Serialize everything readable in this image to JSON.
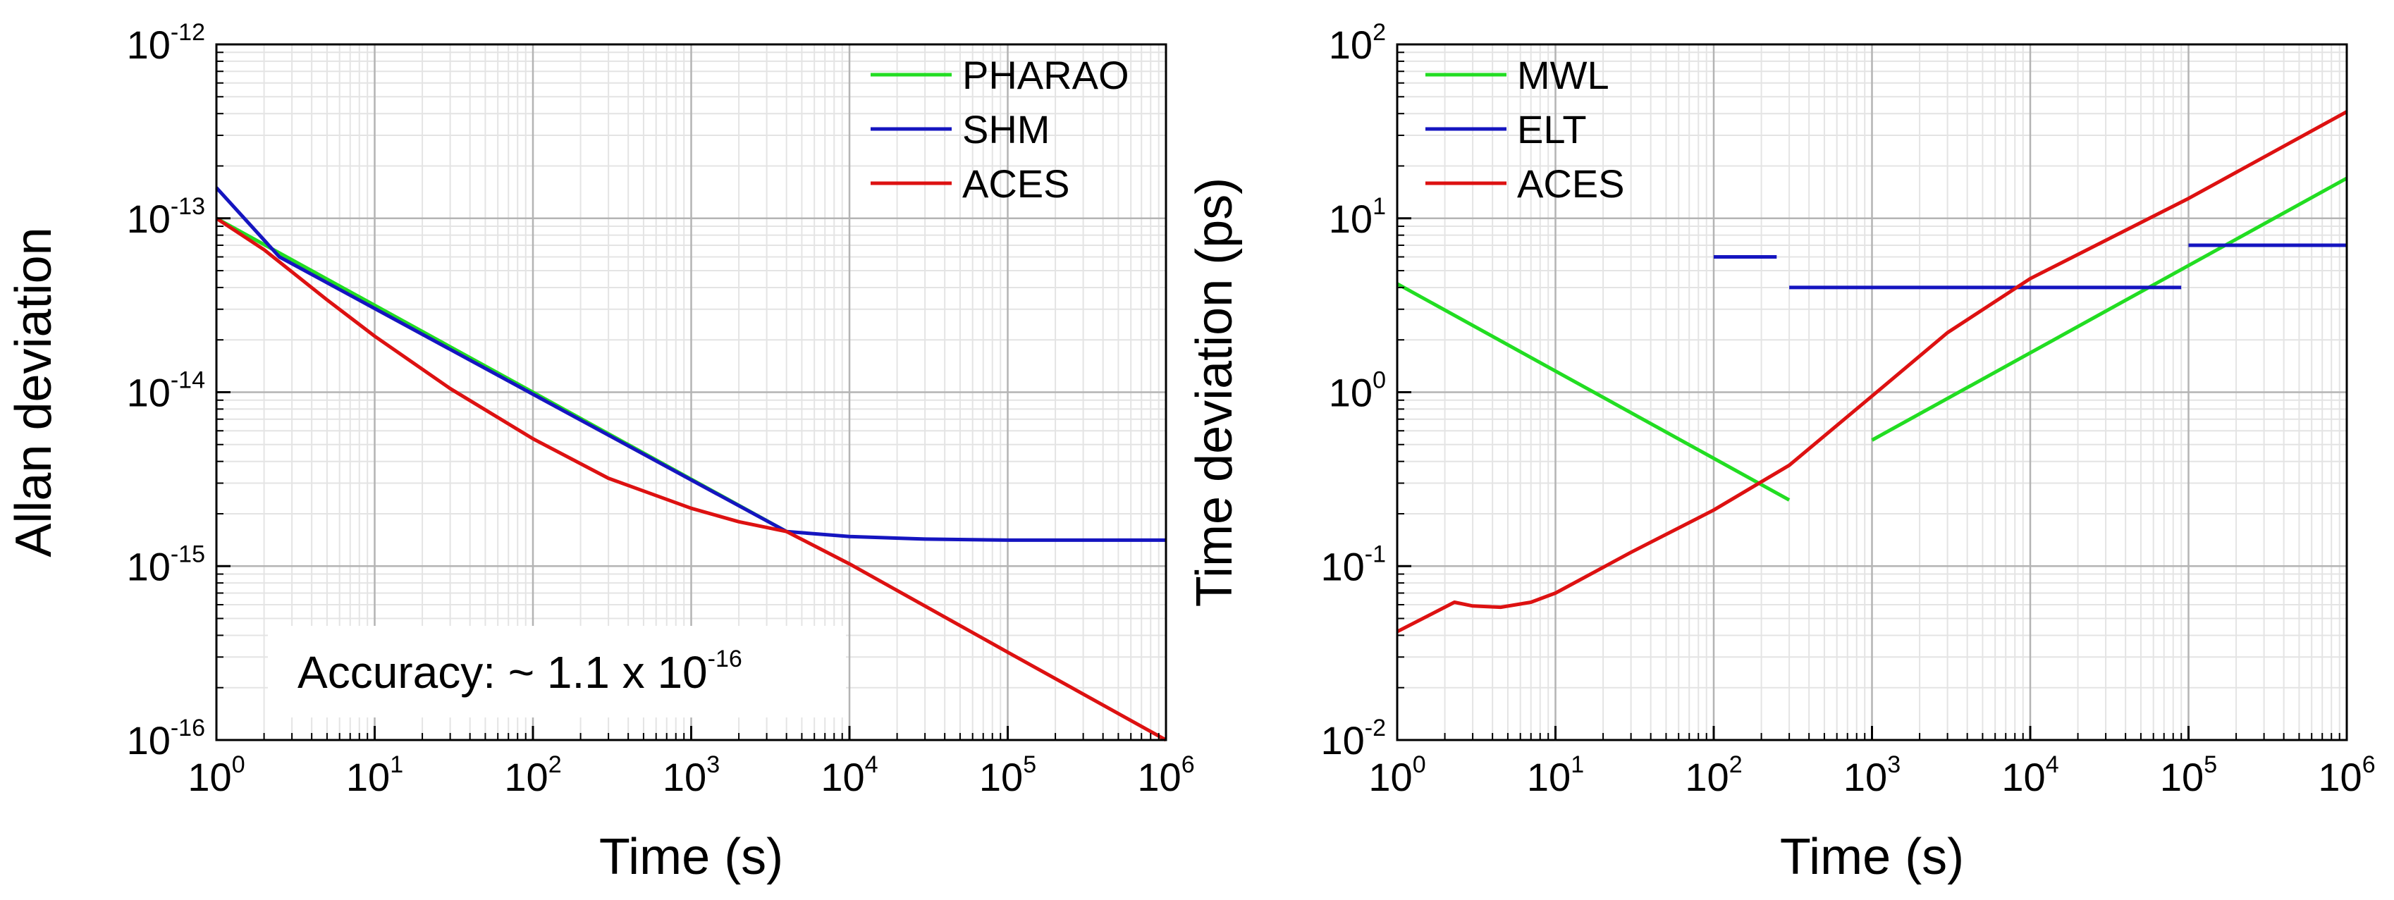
{
  "chart_data": [
    {
      "type": "line",
      "scale": "log-log",
      "xlabel": "Time (s)",
      "ylabel": "Allan deviation",
      "xlim": [
        1,
        1000000
      ],
      "ylim": [
        1e-16,
        1e-12
      ],
      "grid": true,
      "legend_position": "top-right",
      "x_ticks": [
        {
          "base": "10",
          "exp": "0"
        },
        {
          "base": "10",
          "exp": "1"
        },
        {
          "base": "10",
          "exp": "2"
        },
        {
          "base": "10",
          "exp": "3"
        },
        {
          "base": "10",
          "exp": "4"
        },
        {
          "base": "10",
          "exp": "5"
        },
        {
          "base": "10",
          "exp": "6"
        }
      ],
      "y_ticks": [
        {
          "base": "10",
          "exp": "-16"
        },
        {
          "base": "10",
          "exp": "-15"
        },
        {
          "base": "10",
          "exp": "-14"
        },
        {
          "base": "10",
          "exp": "-13"
        },
        {
          "base": "10",
          "exp": "-12"
        }
      ],
      "series": [
        {
          "name": "PHARAO",
          "color": "#22dd22",
          "points": [
            [
              1,
              1e-13
            ],
            [
              4000,
              1.58e-15
            ]
          ]
        },
        {
          "name": "SHM",
          "color": "#1515c0",
          "points": [
            [
              1,
              1.5e-13
            ],
            [
              2.5,
              6e-14
            ],
            [
              4000,
              1.58e-15
            ],
            [
              10000,
              1.48e-15
            ],
            [
              30000,
              1.43e-15
            ],
            [
              100000,
              1.41e-15
            ],
            [
              1000000,
              1.41e-15
            ]
          ]
        },
        {
          "name": "ACES",
          "color": "#dd1111",
          "points": [
            [
              1,
              1e-13
            ],
            [
              2,
              6.6e-14
            ],
            [
              5,
              3.4e-14
            ],
            [
              10,
              2.1e-14
            ],
            [
              30,
              1.05e-14
            ],
            [
              100,
              5.4e-15
            ],
            [
              300,
              3.2e-15
            ],
            [
              1000,
              2.15e-15
            ],
            [
              2000,
              1.8e-15
            ],
            [
              4000,
              1.58e-15
            ],
            [
              10000,
              1.03e-15
            ],
            [
              100000,
              3.2e-16
            ],
            [
              1000000,
              1e-16
            ]
          ]
        }
      ],
      "annotation": {
        "prefix": "Accuracy: ~ 1.1 x 10",
        "exponent": "-16"
      }
    },
    {
      "type": "line",
      "scale": "log-log",
      "xlabel": "Time (s)",
      "ylabel": "Time deviation (ps)",
      "xlim": [
        1,
        1000000
      ],
      "ylim": [
        0.01,
        100
      ],
      "grid": true,
      "legend_position": "top-left",
      "x_ticks": [
        {
          "base": "10",
          "exp": "0"
        },
        {
          "base": "10",
          "exp": "1"
        },
        {
          "base": "10",
          "exp": "2"
        },
        {
          "base": "10",
          "exp": "3"
        },
        {
          "base": "10",
          "exp": "4"
        },
        {
          "base": "10",
          "exp": "5"
        },
        {
          "base": "10",
          "exp": "6"
        }
      ],
      "y_ticks": [
        {
          "base": "10",
          "exp": "-2"
        },
        {
          "base": "10",
          "exp": "-1"
        },
        {
          "base": "10",
          "exp": "0"
        },
        {
          "base": "10",
          "exp": "1"
        },
        {
          "base": "10",
          "exp": "2"
        }
      ],
      "series": [
        {
          "name": "MWL",
          "color": "#22dd22",
          "segments": [
            [
              [
                1,
                4.2
              ],
              [
                300,
                0.24
              ]
            ],
            [
              [
                1000,
                0.53
              ],
              [
                1000000,
                17
              ]
            ]
          ]
        },
        {
          "name": "ELT",
          "color": "#1515c0",
          "segments": [
            [
              [
                100,
                6
              ],
              [
                250,
                6
              ]
            ],
            [
              [
                300,
                4
              ],
              [
                90000,
                4
              ]
            ],
            [
              [
                100000,
                7
              ],
              [
                1000000,
                7
              ]
            ]
          ]
        },
        {
          "name": "ACES",
          "color": "#dd1111",
          "segments": [
            [
              [
                1,
                0.042
              ],
              [
                2.3,
                0.062
              ],
              [
                3,
                0.059
              ],
              [
                4.5,
                0.058
              ],
              [
                7,
                0.062
              ],
              [
                10,
                0.07
              ],
              [
                30,
                0.12
              ],
              [
                100,
                0.21
              ],
              [
                300,
                0.38
              ],
              [
                1000,
                0.95
              ],
              [
                3000,
                2.2
              ],
              [
                10000,
                4.5
              ],
              [
                100000,
                13
              ],
              [
                1000000,
                41
              ]
            ]
          ]
        }
      ]
    }
  ]
}
